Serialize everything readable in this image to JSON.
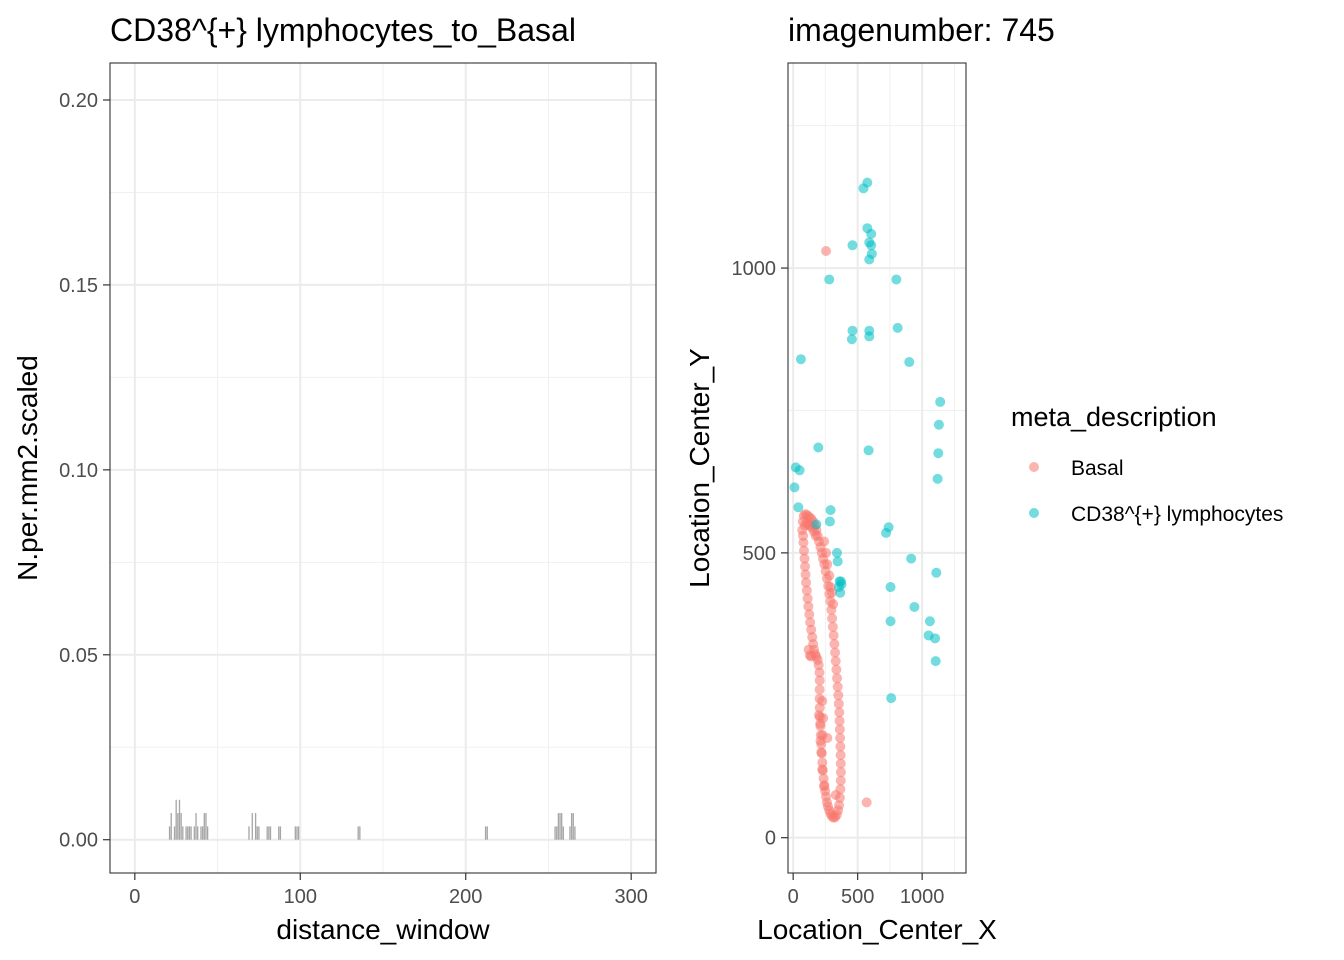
{
  "chart_data": [
    {
      "type": "bar",
      "title": "CD38^{+} lymphocytes_to_Basal",
      "xlabel": "distance_window",
      "ylabel": "N.per.mm2.scaled",
      "xlim": [
        -15,
        315
      ],
      "ylim": [
        -0.009,
        0.21
      ],
      "x_ticks": [
        0,
        100,
        200,
        300
      ],
      "x_tick_labels": [
        "0",
        "100",
        "200",
        "300"
      ],
      "y_ticks": [
        0.0,
        0.05,
        0.1,
        0.15,
        0.2
      ],
      "y_tick_labels": [
        "0.00",
        "0.05",
        "0.10",
        "0.15",
        "0.20"
      ],
      "grid": true,
      "bar_color": "#a6a6a6",
      "bar_width": 1,
      "bars": [
        {
          "x": 21,
          "y": 0.0036
        },
        {
          "x": 22,
          "y": 0.0072
        },
        {
          "x": 24,
          "y": 0.0036
        },
        {
          "x": 25,
          "y": 0.0108
        },
        {
          "x": 26,
          "y": 0.0072
        },
        {
          "x": 27,
          "y": 0.0108
        },
        {
          "x": 28,
          "y": 0.0072
        },
        {
          "x": 29,
          "y": 0.0036
        },
        {
          "x": 31,
          "y": 0.0036
        },
        {
          "x": 32,
          "y": 0.0036
        },
        {
          "x": 33,
          "y": 0.0036
        },
        {
          "x": 34,
          "y": 0.0036
        },
        {
          "x": 36,
          "y": 0.0036
        },
        {
          "x": 37,
          "y": 0.0072
        },
        {
          "x": 38,
          "y": 0.0036
        },
        {
          "x": 40,
          "y": 0.0036
        },
        {
          "x": 41,
          "y": 0.0036
        },
        {
          "x": 42,
          "y": 0.0072
        },
        {
          "x": 43,
          "y": 0.0072
        },
        {
          "x": 44,
          "y": 0.0036
        },
        {
          "x": 69,
          "y": 0.0036
        },
        {
          "x": 71,
          "y": 0.0072
        },
        {
          "x": 73,
          "y": 0.0072
        },
        {
          "x": 74,
          "y": 0.0036
        },
        {
          "x": 75,
          "y": 0.0036
        },
        {
          "x": 80,
          "y": 0.0036
        },
        {
          "x": 81,
          "y": 0.0036
        },
        {
          "x": 82,
          "y": 0.0036
        },
        {
          "x": 87,
          "y": 0.0036
        },
        {
          "x": 88,
          "y": 0.0036
        },
        {
          "x": 97,
          "y": 0.0036
        },
        {
          "x": 98,
          "y": 0.0036
        },
        {
          "x": 99,
          "y": 0.0036
        },
        {
          "x": 135,
          "y": 0.0036
        },
        {
          "x": 136,
          "y": 0.0036
        },
        {
          "x": 212,
          "y": 0.0036
        },
        {
          "x": 213,
          "y": 0.0036
        },
        {
          "x": 254,
          "y": 0.0036
        },
        {
          "x": 255,
          "y": 0.0036
        },
        {
          "x": 256,
          "y": 0.0072
        },
        {
          "x": 257,
          "y": 0.0072
        },
        {
          "x": 258,
          "y": 0.0072
        },
        {
          "x": 259,
          "y": 0.0036
        },
        {
          "x": 263,
          "y": 0.0036
        },
        {
          "x": 264,
          "y": 0.0072
        },
        {
          "x": 265,
          "y": 0.0072
        },
        {
          "x": 266,
          "y": 0.0036
        }
      ]
    },
    {
      "type": "scatter",
      "title": "imagenumber:  745",
      "xlabel": "Location_Center_X",
      "ylabel": "Location_Center_Y",
      "xlim": [
        -40,
        1340
      ],
      "ylim": [
        -62,
        1360
      ],
      "x_ticks": [
        0,
        500,
        1000
      ],
      "x_tick_labels": [
        "0",
        "500",
        "1000"
      ],
      "y_ticks": [
        0,
        500,
        1000
      ],
      "y_tick_labels": [
        "0",
        "500",
        "1000"
      ],
      "grid": true,
      "legend": {
        "title": "meta_description",
        "placement": "right"
      },
      "series": [
        {
          "name": "Basal",
          "color": "#F8766D",
          "points": [
            [
              70,
              540
            ],
            [
              75,
              555
            ],
            [
              82,
              565
            ],
            [
              95,
              568
            ],
            [
              110,
              566
            ],
            [
              125,
              563
            ],
            [
              140,
              560
            ],
            [
              155,
              555
            ],
            [
              168,
              548
            ],
            [
              180,
              540
            ],
            [
              190,
              530
            ],
            [
              200,
              520
            ],
            [
              212,
              510
            ],
            [
              222,
              500
            ],
            [
              232,
              490
            ],
            [
              242,
              480
            ],
            [
              252,
              468
            ],
            [
              262,
              455
            ],
            [
              272,
              442
            ],
            [
              280,
              428
            ],
            [
              288,
              415
            ],
            [
              296,
              400
            ],
            [
              302,
              385
            ],
            [
              308,
              370
            ],
            [
              314,
              355
            ],
            [
              320,
              340
            ],
            [
              325,
              325
            ],
            [
              330,
              310
            ],
            [
              335,
              295
            ],
            [
              340,
              280
            ],
            [
              345,
              265
            ],
            [
              350,
              250
            ],
            [
              354,
              235
            ],
            [
              358,
              220
            ],
            [
              360,
              205
            ],
            [
              362,
              190
            ],
            [
              364,
              175
            ],
            [
              366,
              160
            ],
            [
              368,
              145
            ],
            [
              369,
              130
            ],
            [
              370,
              115
            ],
            [
              369,
              100
            ],
            [
              366,
              85
            ],
            [
              362,
              70
            ],
            [
              356,
              57
            ],
            [
              348,
              48
            ],
            [
              338,
              40
            ],
            [
              325,
              36
            ],
            [
              312,
              35
            ],
            [
              300,
              38
            ],
            [
              290,
              42
            ],
            [
              280,
              48
            ],
            [
              270,
              55
            ],
            [
              262,
              62
            ],
            [
              255,
              72
            ],
            [
              248,
              82
            ],
            [
              242,
              92
            ],
            [
              236,
              104
            ],
            [
              230,
              118
            ],
            [
              226,
              132
            ],
            [
              222,
              148
            ],
            [
              218,
              164
            ],
            [
              214,
              180
            ],
            [
              211,
              196
            ],
            [
              208,
              212
            ],
            [
              206,
              228
            ],
            [
              205,
              244
            ],
            [
              205,
              260
            ],
            [
              206,
              276
            ],
            [
              204,
              290
            ],
            [
              198,
              303
            ],
            [
              190,
              312
            ],
            [
              180,
              318
            ],
            [
              170,
              322
            ],
            [
              162,
              330
            ],
            [
              155,
              340
            ],
            [
              148,
              352
            ],
            [
              140,
              365
            ],
            [
              132,
              378
            ],
            [
              125,
              392
            ],
            [
              118,
              406
            ],
            [
              112,
              420
            ],
            [
              106,
              434
            ],
            [
              100,
              448
            ],
            [
              96,
              462
            ],
            [
              92,
              476
            ],
            [
              88,
              490
            ],
            [
              84,
              504
            ],
            [
              80,
              518
            ],
            [
              77,
              530
            ],
            [
              90,
              548
            ],
            [
              105,
              552
            ],
            [
              118,
              550
            ],
            [
              130,
              548
            ],
            [
              145,
              544
            ],
            [
              160,
              538
            ],
            [
              175,
              530
            ],
            [
              120,
              330
            ],
            [
              130,
              320
            ],
            [
              140,
              318
            ],
            [
              200,
              215
            ],
            [
              210,
              200
            ],
            [
              212,
              170
            ],
            [
              218,
              150
            ],
            [
              226,
              120
            ],
            [
              240,
              90
            ],
            [
              228,
              180
            ],
            [
              232,
              210
            ],
            [
              225,
              240
            ],
            [
              240,
              520
            ],
            [
              255,
              500
            ],
            [
              265,
              480
            ],
            [
              280,
              460
            ],
            [
              290,
              440
            ],
            [
              300,
              430
            ],
            [
              310,
              410
            ],
            [
              255,
              1030
            ],
            [
              570,
              62
            ],
            [
              265,
              175
            ],
            [
              330,
              75
            ]
          ]
        },
        {
          "name": "CD38^{+} lymphocytes",
          "color": "#00BFC4",
          "points": [
            [
              575,
              1150
            ],
            [
              545,
              1140
            ],
            [
              575,
              1070
            ],
            [
              605,
              1060
            ],
            [
              590,
              1045
            ],
            [
              460,
              1040
            ],
            [
              605,
              1040
            ],
            [
              610,
              1025
            ],
            [
              590,
              1015
            ],
            [
              280,
              980
            ],
            [
              800,
              980
            ],
            [
              460,
              890
            ],
            [
              590,
              890
            ],
            [
              810,
              895
            ],
            [
              455,
              875
            ],
            [
              590,
              880
            ],
            [
              60,
              840
            ],
            [
              900,
              835
            ],
            [
              1140,
              765
            ],
            [
              1130,
              725
            ],
            [
              1125,
              675
            ],
            [
              1120,
              630
            ],
            [
              195,
              685
            ],
            [
              585,
              680
            ],
            [
              20,
              650
            ],
            [
              50,
              645
            ],
            [
              10,
              615
            ],
            [
              40,
              580
            ],
            [
              290,
              575
            ],
            [
              285,
              555
            ],
            [
              740,
              545
            ],
            [
              720,
              535
            ],
            [
              180,
              550
            ],
            [
              340,
              500
            ],
            [
              345,
              485
            ],
            [
              915,
              490
            ],
            [
              360,
              450
            ],
            [
              370,
              450
            ],
            [
              375,
              445
            ],
            [
              355,
              440
            ],
            [
              365,
              430
            ],
            [
              1110,
              465
            ],
            [
              755,
              440
            ],
            [
              940,
              405
            ],
            [
              1060,
              380
            ],
            [
              755,
              380
            ],
            [
              1050,
              355
            ],
            [
              1100,
              350
            ],
            [
              1105,
              310
            ],
            [
              760,
              245
            ]
          ]
        }
      ]
    }
  ]
}
